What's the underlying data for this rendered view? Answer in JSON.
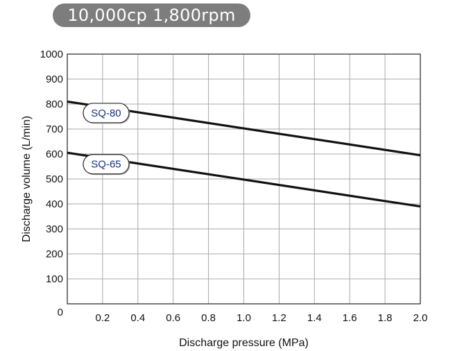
{
  "header": {
    "title": "10,000cp 1,800rpm"
  },
  "chart_data": {
    "type": "line",
    "title": "10,000cp 1,800rpm",
    "xlabel": "Discharge pressure (MPa)",
    "ylabel": "Discharge volume (L/min)",
    "xlim": [
      0,
      2.0
    ],
    "ylim": [
      0,
      1000
    ],
    "x_ticks": [
      {
        "value": 0.2,
        "label": "0.2"
      },
      {
        "value": 0.4,
        "label": "0.4"
      },
      {
        "value": 0.6,
        "label": "0.6"
      },
      {
        "value": 0.8,
        "label": "0.8"
      },
      {
        "value": 1.0,
        "label": "1.0"
      },
      {
        "value": 1.2,
        "label": "1.2"
      },
      {
        "value": 1.4,
        "label": "1.4"
      },
      {
        "value": 1.6,
        "label": "1.6"
      },
      {
        "value": 1.8,
        "label": "1.8"
      },
      {
        "value": 2.0,
        "label": "2.0"
      }
    ],
    "y_ticks": [
      {
        "value": 0,
        "label": "0"
      },
      {
        "value": 100,
        "label": "100"
      },
      {
        "value": 200,
        "label": "200"
      },
      {
        "value": 300,
        "label": "300"
      },
      {
        "value": 400,
        "label": "400"
      },
      {
        "value": 500,
        "label": "500"
      },
      {
        "value": 600,
        "label": "600"
      },
      {
        "value": 700,
        "label": "700"
      },
      {
        "value": 800,
        "label": "800"
      },
      {
        "value": 900,
        "label": "900"
      },
      {
        "value": 1000,
        "label": "1000"
      }
    ],
    "grid": true,
    "series": [
      {
        "name": "SQ-80",
        "x": [
          0,
          2.0
        ],
        "y": [
          810,
          595
        ],
        "color": "#111111"
      },
      {
        "name": "SQ-65",
        "x": [
          0,
          2.0
        ],
        "y": [
          605,
          390
        ],
        "color": "#111111"
      }
    ],
    "label_color": "#1a2f7a"
  }
}
